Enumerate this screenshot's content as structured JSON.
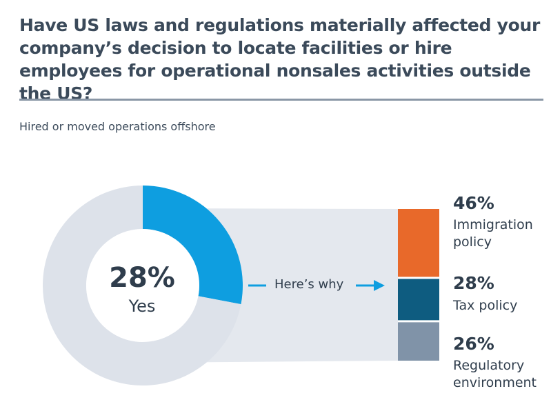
{
  "title": "Have US laws and regulations materially affected your company’s decision to locate facilities or hire employees for operational nonsales activities outside the US?",
  "subtitle": "Hired or moved operations offshore",
  "connector_label": "Here’s why",
  "chart_data": [
    {
      "type": "pie",
      "variant": "donut",
      "center_value": "28%",
      "center_label": "Yes",
      "slices": [
        {
          "label": "Yes",
          "value": 28,
          "color": "#0e9ee0"
        },
        {
          "label": "",
          "value": 72,
          "color": "#dde2ea"
        }
      ]
    },
    {
      "type": "bar",
      "variant": "stacked-100",
      "categories": [
        "Immigration policy",
        "Tax policy",
        "Regulatory environment"
      ],
      "values": [
        46,
        28,
        26
      ],
      "value_labels": [
        "46%",
        "28%",
        "26%"
      ],
      "desc_lines": [
        [
          "Immigration",
          "policy"
        ],
        [
          "Tax policy"
        ],
        [
          "Regulatory",
          "environment"
        ]
      ],
      "colors": [
        "#e8692a",
        "#0e5c80",
        "#8093a8"
      ]
    }
  ],
  "colors": {
    "band": "#e4e8ee",
    "arrow": "#0e9ee0",
    "rule": "#8a97a6"
  }
}
